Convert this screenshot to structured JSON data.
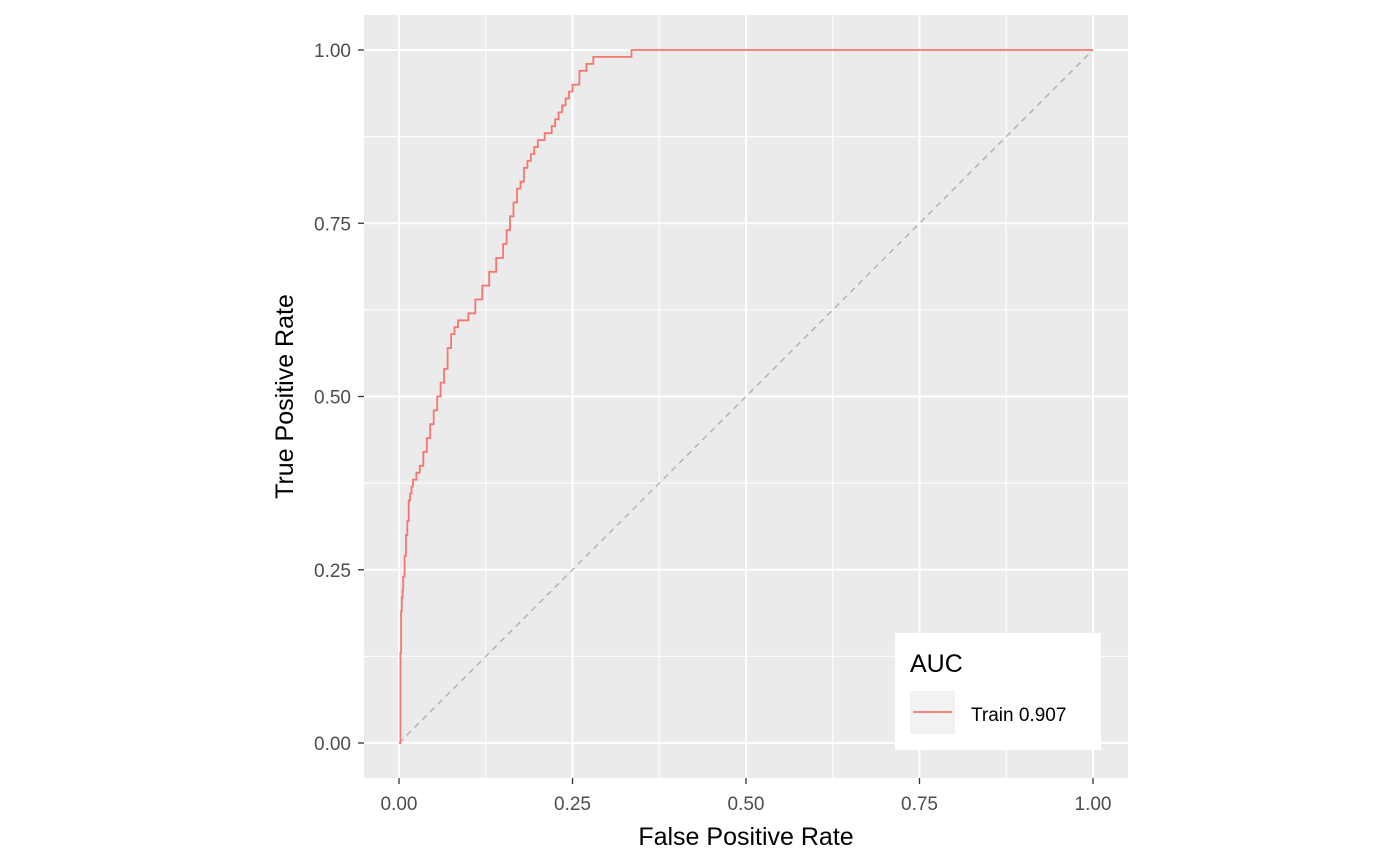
{
  "chart_data": {
    "type": "line",
    "title": "",
    "xlabel": "False Positive Rate",
    "ylabel": "True Positive Rate",
    "xlim": [
      0,
      1
    ],
    "ylim": [
      0,
      1
    ],
    "x_ticks": [
      "0.00",
      "0.25",
      "0.50",
      "0.75",
      "1.00"
    ],
    "y_ticks": [
      "0.00",
      "0.25",
      "0.50",
      "0.75",
      "1.00"
    ],
    "grid": true,
    "legend": {
      "title": "AUC",
      "position": "bottom-right"
    },
    "colors": {
      "panel": "#ebebeb",
      "grid": "#ffffff",
      "diagonal": "#b3b3b3"
    },
    "reference_line": {
      "x": [
        0,
        1
      ],
      "y": [
        0,
        1
      ],
      "style": "dashed"
    },
    "series": [
      {
        "name": "Train 0.907",
        "color": "#f8766d",
        "x": [
          0.0,
          0.002,
          0.002,
          0.003,
          0.004,
          0.005,
          0.006,
          0.008,
          0.01,
          0.012,
          0.014,
          0.016,
          0.018,
          0.02,
          0.025,
          0.03,
          0.035,
          0.04,
          0.045,
          0.05,
          0.055,
          0.06,
          0.065,
          0.07,
          0.075,
          0.08,
          0.085,
          0.09,
          0.1,
          0.11,
          0.12,
          0.13,
          0.14,
          0.15,
          0.155,
          0.16,
          0.165,
          0.17,
          0.175,
          0.18,
          0.185,
          0.19,
          0.195,
          0.2,
          0.205,
          0.21,
          0.22,
          0.225,
          0.23,
          0.235,
          0.24,
          0.245,
          0.25,
          0.26,
          0.27,
          0.28,
          0.29,
          0.3,
          0.33,
          0.335,
          1.0
        ],
        "y": [
          0.0,
          0.04,
          0.13,
          0.19,
          0.21,
          0.22,
          0.24,
          0.27,
          0.3,
          0.32,
          0.35,
          0.36,
          0.37,
          0.38,
          0.39,
          0.4,
          0.42,
          0.44,
          0.46,
          0.48,
          0.5,
          0.52,
          0.54,
          0.57,
          0.59,
          0.6,
          0.61,
          0.61,
          0.62,
          0.64,
          0.66,
          0.68,
          0.7,
          0.72,
          0.74,
          0.76,
          0.78,
          0.8,
          0.81,
          0.83,
          0.84,
          0.85,
          0.86,
          0.87,
          0.87,
          0.88,
          0.89,
          0.9,
          0.91,
          0.92,
          0.93,
          0.94,
          0.95,
          0.97,
          0.98,
          0.99,
          0.99,
          0.99,
          0.99,
          1.0,
          1.0
        ]
      }
    ]
  }
}
